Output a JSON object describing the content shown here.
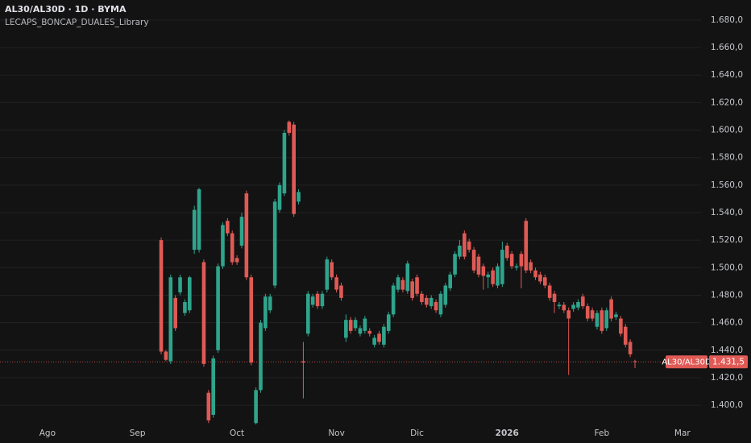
{
  "chart_data": {
    "type": "candlestick",
    "title": "AL30/AL30D · 1D · BYMA",
    "subtitle": "LECAPS_BONCAP_DUALES_Library",
    "categories": [
      "Ago",
      null,
      null,
      null,
      null,
      null,
      null,
      null,
      null,
      null,
      null,
      null,
      null,
      null,
      null,
      null,
      null,
      null,
      null,
      "Sep",
      null,
      null,
      null,
      null,
      null,
      null,
      null,
      null,
      null,
      null,
      null,
      null,
      null,
      null,
      null,
      null,
      null,
      null,
      null,
      null,
      "Oct",
      null,
      null,
      null,
      null,
      null,
      null,
      null,
      null,
      null,
      null,
      null,
      null,
      null,
      null,
      null,
      null,
      null,
      null,
      null,
      null,
      "Nov",
      null,
      null,
      null,
      null,
      null,
      null,
      null,
      null,
      null,
      null,
      null,
      null,
      null,
      null,
      null,
      null,
      "Dic",
      null,
      null,
      null,
      null,
      null,
      null,
      null,
      null,
      null,
      null,
      null,
      null,
      null,
      null,
      null,
      null,
      null,
      null,
      "2026",
      null,
      null,
      null,
      null,
      null,
      null,
      null,
      null,
      null,
      null,
      null,
      null,
      null,
      null,
      null,
      null,
      null,
      null,
      null,
      "Feb",
      null,
      null,
      null,
      null,
      null,
      null,
      null,
      null,
      null,
      null,
      null,
      null,
      null,
      null,
      null,
      null,
      "Mar"
    ],
    "open": [
      null,
      null,
      null,
      null,
      null,
      null,
      null,
      null,
      null,
      null,
      null,
      null,
      null,
      null,
      null,
      null,
      null,
      null,
      null,
      null,
      null,
      null,
      null,
      null,
      1520,
      1439,
      1432,
      1478,
      1482,
      1467,
      1469,
      1513,
      1513,
      1504,
      1409,
      1393,
      1440,
      1501,
      1534,
      1525,
      1507,
      1516,
      1554,
      1493,
      1387,
      1411,
      1456,
      1469,
      1487,
      1542,
      1554,
      1606,
      1604,
      1548,
      1432,
      1452,
      1473,
      1481,
      1472,
      1484,
      1504,
      1493,
      1487,
      1449,
      1462,
      1456,
      1452,
      1454,
      1454,
      1444,
      1452,
      1444,
      1454,
      1466,
      1484,
      1491,
      1483,
      1490,
      1493,
      1481,
      1478,
      1472,
      1475,
      1466,
      1473,
      1485,
      1495,
      1508,
      1525,
      1519,
      1513,
      1508,
      1501,
      1493,
      1498,
      1487,
      1488,
      1516,
      1510,
      1500,
      1510,
      1534,
      1504,
      1498,
      1495,
      1493,
      1487,
      1481,
      1472,
      1473,
      1469,
      1470,
      1471,
      1479,
      1472,
      1469,
      1457,
      1469,
      1456,
      1477,
      1464,
      1463,
      1457,
      1446,
      1432,
      null,
      null,
      null,
      null,
      null,
      null,
      null,
      null,
      null,
      null
    ],
    "high": [
      null,
      null,
      null,
      null,
      null,
      null,
      null,
      null,
      null,
      null,
      null,
      null,
      null,
      null,
      null,
      null,
      null,
      null,
      null,
      null,
      null,
      null,
      null,
      null,
      1522,
      1440,
      1495,
      1480,
      1495,
      1477,
      1494,
      1545,
      1558,
      1506,
      1411,
      1436,
      1503,
      1533,
      1536,
      1527,
      1509,
      1540,
      1556,
      1495,
      1413,
      1462,
      1481,
      1481,
      1550,
      1562,
      1600,
      1607,
      1606,
      1557,
      1446,
      1483,
      1481,
      1483,
      1483,
      1508,
      1506,
      1495,
      1489,
      1466,
      1464,
      1464,
      1458,
      1465,
      1456,
      1451,
      1454,
      1459,
      1468,
      1489,
      1495,
      1493,
      1505,
      1492,
      1495,
      1483,
      1480,
      1480,
      1477,
      1483,
      1489,
      1497,
      1512,
      1520,
      1527,
      1521,
      1515,
      1510,
      1503,
      1497,
      1500,
      1503,
      1519,
      1518,
      1512,
      1503,
      1512,
      1536,
      1506,
      1500,
      1497,
      1495,
      1489,
      1483,
      1475,
      1475,
      1471,
      1475,
      1477,
      1481,
      1474,
      1471,
      1469,
      1471,
      1471,
      1479,
      1468,
      1465,
      1459,
      1448,
      1433,
      null,
      null,
      null,
      null,
      null,
      null,
      null,
      null,
      null,
      null
    ],
    "low": [
      null,
      null,
      null,
      null,
      null,
      null,
      null,
      null,
      null,
      null,
      null,
      null,
      null,
      null,
      null,
      null,
      null,
      null,
      null,
      null,
      null,
      null,
      null,
      null,
      1437,
      1432,
      1430,
      1454,
      1480,
      1465,
      1467,
      1510,
      1511,
      1428,
      1387,
      1391,
      1438,
      1499,
      1523,
      1502,
      1502,
      1514,
      1491,
      1429,
      1386,
      1409,
      1454,
      1467,
      1485,
      1540,
      1552,
      1596,
      1537,
      1546,
      1405,
      1450,
      1471,
      1470,
      1470,
      1482,
      1491,
      1482,
      1476,
      1446,
      1452,
      1454,
      1450,
      1452,
      1450,
      1442,
      1444,
      1442,
      1452,
      1464,
      1482,
      1482,
      1481,
      1476,
      1479,
      1473,
      1471,
      1470,
      1467,
      1464,
      1471,
      1483,
      1493,
      1506,
      1506,
      1511,
      1496,
      1493,
      1484,
      1485,
      1486,
      1485,
      1486,
      1505,
      1499,
      1498,
      1485,
      1496,
      1496,
      1491,
      1488,
      1485,
      1476,
      1467,
      1470,
      1467,
      1422,
      1468,
      1469,
      1470,
      1461,
      1461,
      1455,
      1452,
      1454,
      1461,
      1462,
      1450,
      1442,
      1435,
      1427,
      null,
      null,
      null,
      null,
      null,
      null,
      null,
      null,
      null,
      null
    ],
    "close": [
      null,
      null,
      null,
      null,
      null,
      null,
      null,
      null,
      null,
      null,
      null,
      null,
      null,
      null,
      null,
      null,
      null,
      null,
      null,
      null,
      null,
      null,
      null,
      null,
      1439,
      1433,
      1493,
      1456,
      1493,
      1475,
      1493,
      1542,
      1557,
      1430,
      1389,
      1434,
      1501,
      1531,
      1525,
      1504,
      1504,
      1537,
      1493,
      1431,
      1411,
      1460,
      1479,
      1479,
      1548,
      1560,
      1598,
      1598,
      1539,
      1555,
      1431,
      1481,
      1479,
      1472,
      1481,
      1506,
      1493,
      1484,
      1478,
      1462,
      1454,
      1462,
      1456,
      1463,
      1452,
      1449,
      1446,
      1457,
      1466,
      1487,
      1493,
      1484,
      1503,
      1478,
      1481,
      1475,
      1473,
      1478,
      1469,
      1481,
      1487,
      1495,
      1510,
      1516,
      1508,
      1513,
      1498,
      1495,
      1494,
      1495,
      1488,
      1501,
      1513,
      1507,
      1501,
      1501,
      1501,
      1498,
      1498,
      1493,
      1490,
      1487,
      1478,
      1475,
      1473,
      1469,
      1463,
      1473,
      1475,
      1472,
      1463,
      1463,
      1467,
      1454,
      1469,
      1463,
      1466,
      1452,
      1444,
      1437,
      1431.5,
      null,
      null,
      null,
      null,
      null,
      null,
      null,
      null,
      null,
      null
    ],
    "up_color": "#2fa48c",
    "down_color": "#e05a55",
    "ylim": [
      1385.4,
      1694.6
    ],
    "yticks": [
      {
        "value": 1400,
        "label": "1.400,0"
      },
      {
        "value": 1420,
        "label": "1.420,0"
      },
      {
        "value": 1440,
        "label": "1.440,0"
      },
      {
        "value": 1460,
        "label": "1.460,0"
      },
      {
        "value": 1480,
        "label": "1.480,0"
      },
      {
        "value": 1500,
        "label": "1.500,0"
      },
      {
        "value": 1520,
        "label": "1.520,0"
      },
      {
        "value": 1540,
        "label": "1.540,0"
      },
      {
        "value": 1560,
        "label": "1.560,0"
      },
      {
        "value": 1580,
        "label": "1.580,0"
      },
      {
        "value": 1600,
        "label": "1.600,0"
      },
      {
        "value": 1620,
        "label": "1.620,0"
      },
      {
        "value": 1640,
        "label": "1.640,0"
      },
      {
        "value": 1660,
        "label": "1.660,0"
      },
      {
        "value": 1680,
        "label": "1.680,0"
      }
    ],
    "grid": true,
    "last_price": {
      "value": 1431.5,
      "label": "1.431,5"
    },
    "last_price_name": "AL30/AL30D"
  }
}
